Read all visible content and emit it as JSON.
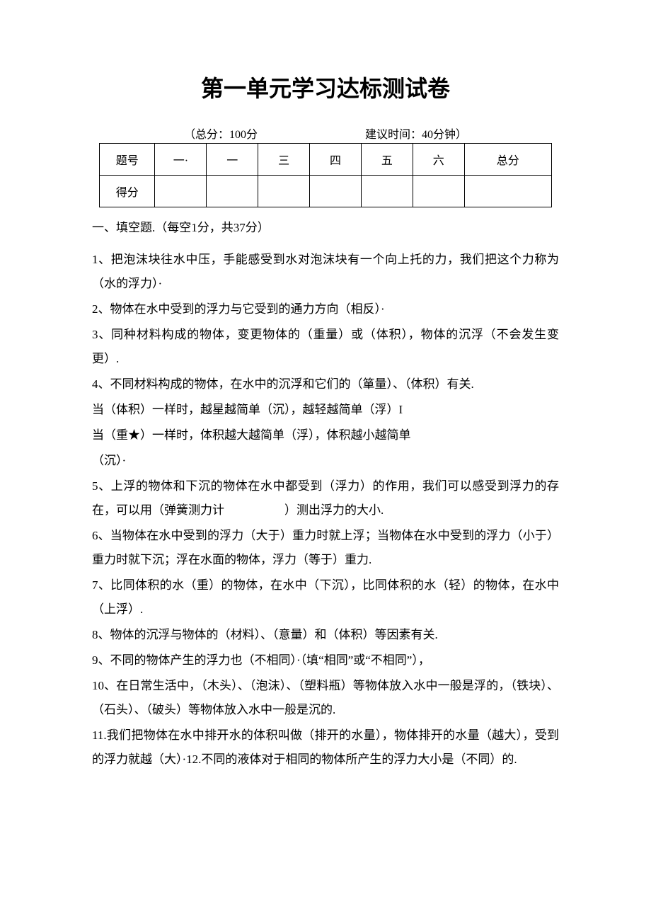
{
  "title": "第一单元学习达标测试卷",
  "meta": {
    "total_score": "（总分：100分",
    "time": "建议时间：40分钟）"
  },
  "table": {
    "row1_label": "题号",
    "headers": [
      "一·",
      "一",
      "三",
      "四",
      "五",
      "六",
      "总分"
    ],
    "row2_label": "得分"
  },
  "section1": {
    "heading": "一、填空题.（每空1分，共37分）",
    "q1": "1、把泡沫块往水中压，手能感受到水对泡沫块有一个向上托的力，我们把这个力称为（水的浮力）·",
    "q2": "2、物体在水中受到的浮力与它受到的通力方向（相反）·",
    "q3": "3、同种材料构成的物体，变更物体的（重量）或（体积），物体的沉浮（不会发生变更）.",
    "q4a": "4、不同材料构成的物体，在水中的沉浮和它们的（箪量）、（体积）有关.",
    "q4b": "当（体积）一样时，越星越简单（沉），越轻越简单（浮）I",
    "q4c": "当（重★）一样时，体积越大越简单（浮），体积越小越简单",
    "q4d": "（沉）·",
    "q5": "5、上浮的物体和下沉的物体在水中都受到（浮力）的作用，我们可以感受到浮力的存在，可以用（弹簧测力计　　　　　）测出浮力的大小.",
    "q6": "6、当物体在水中受到的浮力（大于）重力时就上浮；当物体在水中受到的浮力（小于）重力时就下沉；浮在水面的物体，浮力（等于）重力.",
    "q7": "7、比同体积的水（重）的物体，在水中（下沉），比同体积的水（轻）的物体，在水中（上浮）.",
    "q8": "8、物体的沉浮与物体的（材料）、（意量）和（体积）等因素有关.",
    "q9": "9、不同的物体产生的浮力也（不相同）·（填“相同”或“不相同”），",
    "q10": "10、在日常生活中，（木头）、（泡沫）、（塑料瓶）等物体放入水中一般是浮的，（铁块）、（石头）、（破头）等物体放入水中一般是沉的.",
    "q11": "11.我们把物体在水中排开水的体积叫做（排开的水量），物体排开的水量（越大），受到的浮力就越（大）·12.不同的液体对于相同的物体所产生的浮力大小是（不同）的."
  }
}
